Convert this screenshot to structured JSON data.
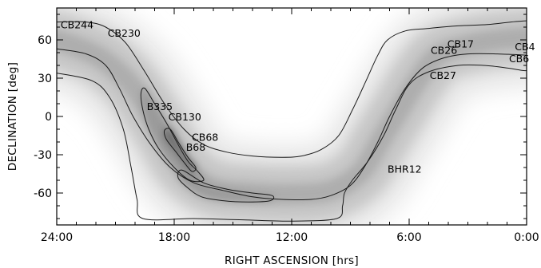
{
  "chart_data": {
    "type": "heatmap",
    "title": "",
    "xlabel": "RIGHT ASCENSION [hrs]",
    "ylabel": "DECLINATION [deg]",
    "xlim": [
      24,
      0
    ],
    "ylim": [
      -85,
      85
    ],
    "x_ticks": [
      {
        "value": 24,
        "label": "24:00"
      },
      {
        "value": 18,
        "label": "18:00"
      },
      {
        "value": 12,
        "label": "12:00"
      },
      {
        "value": 6,
        "label": "6:00"
      },
      {
        "value": 0,
        "label": "0:00"
      }
    ],
    "y_ticks": [
      {
        "value": 60,
        "label": "60"
      },
      {
        "value": 30,
        "label": "30"
      },
      {
        "value": 0,
        "label": "0"
      },
      {
        "value": -30,
        "label": "-30"
      },
      {
        "value": -60,
        "label": "-60"
      }
    ],
    "grid": false,
    "colormap": "greyscale",
    "objects": [
      {
        "name": "CB244",
        "ra": 23.8,
        "dec": 69
      },
      {
        "name": "CB230",
        "ra": 21.4,
        "dec": 62.5
      },
      {
        "name": "B335",
        "ra": 19.4,
        "dec": 5
      },
      {
        "name": "CB130",
        "ra": 18.3,
        "dec": -3
      },
      {
        "name": "CB68",
        "ra": 17.1,
        "dec": -19
      },
      {
        "name": "B68",
        "ra": 17.4,
        "dec": -27
      },
      {
        "name": "BHR12",
        "ra": 7.1,
        "dec": -44
      },
      {
        "name": "CB17",
        "ra": 4.05,
        "dec": 54
      },
      {
        "name": "CB26",
        "ra": 4.9,
        "dec": 49
      },
      {
        "name": "CB27",
        "ra": 4.95,
        "dec": 29.5
      },
      {
        "name": "CB4",
        "ra": 0.6,
        "dec": 52
      },
      {
        "name": "CB6",
        "ra": 0.9,
        "dec": 42.5
      }
    ],
    "band_center": [
      {
        "ra": 24,
        "dec": 60
      },
      {
        "ra": 22,
        "dec": 48
      },
      {
        "ra": 20.5,
        "dec": 30
      },
      {
        "ra": 19.5,
        "dec": 10
      },
      {
        "ra": 18.5,
        "dec": -15
      },
      {
        "ra": 17.5,
        "dec": -40
      },
      {
        "ra": 16,
        "dec": -56
      },
      {
        "ra": 14,
        "dec": -60
      },
      {
        "ra": 12,
        "dec": -61
      },
      {
        "ra": 10,
        "dec": -58
      },
      {
        "ra": 8.5,
        "dec": -44
      },
      {
        "ra": 7.5,
        "dec": -20
      },
      {
        "ra": 6.5,
        "dec": 5
      },
      {
        "ra": 5.5,
        "dec": 30
      },
      {
        "ra": 4.5,
        "dec": 48
      },
      {
        "ra": 3,
        "dec": 56
      },
      {
        "ra": 1.5,
        "dec": 60
      },
      {
        "ra": 0,
        "dec": 62
      }
    ],
    "contours": [
      {
        "level": "outer",
        "points": [
          {
            "ra": 24,
            "dec": 34
          },
          {
            "ra": 22.2,
            "dec": 28
          },
          {
            "ra": 21.3,
            "dec": 15
          },
          {
            "ra": 20.6,
            "dec": -10
          },
          {
            "ra": 20.2,
            "dec": -40
          },
          {
            "ra": 19.9,
            "dec": -65
          },
          {
            "ra": 19.6,
            "dec": -80
          },
          {
            "ra": 17,
            "dec": -80
          },
          {
            "ra": 14.5,
            "dec": -81
          },
          {
            "ra": 12,
            "dec": -82
          },
          {
            "ra": 9.7,
            "dec": -80
          },
          {
            "ra": 9.4,
            "dec": -70
          },
          {
            "ra": 9.3,
            "dec": -60
          },
          {
            "ra": 8.9,
            "dec": -50
          },
          {
            "ra": 8.1,
            "dec": -35
          },
          {
            "ra": 7.3,
            "dec": -15
          },
          {
            "ra": 6.7,
            "dec": 5
          },
          {
            "ra": 6.0,
            "dec": 25
          },
          {
            "ra": 5.0,
            "dec": 35
          },
          {
            "ra": 3.5,
            "dec": 40
          },
          {
            "ra": 2.2,
            "dec": 40
          },
          {
            "ra": 1.0,
            "dec": 38
          },
          {
            "ra": 0.2,
            "dec": 36
          },
          {
            "ra": 0,
            "dec": 36
          }
        ]
      },
      {
        "level": "middle-upper",
        "points": [
          {
            "ra": 24,
            "dec": 53
          },
          {
            "ra": 22.5,
            "dec": 49
          },
          {
            "ra": 21.5,
            "dec": 40
          },
          {
            "ra": 20.8,
            "dec": 22
          },
          {
            "ra": 20.1,
            "dec": 0
          },
          {
            "ra": 19.2,
            "dec": -22
          },
          {
            "ra": 18.2,
            "dec": -40
          },
          {
            "ra": 17,
            "dec": -52
          },
          {
            "ra": 15.5,
            "dec": -58
          },
          {
            "ra": 14,
            "dec": -63
          },
          {
            "ra": 12.5,
            "dec": -65
          },
          {
            "ra": 11,
            "dec": -65
          },
          {
            "ra": 10,
            "dec": -62
          },
          {
            "ra": 9.0,
            "dec": -54
          },
          {
            "ra": 8.3,
            "dec": -40
          },
          {
            "ra": 7.6,
            "dec": -20
          },
          {
            "ra": 7.0,
            "dec": 0
          },
          {
            "ra": 6.2,
            "dec": 22
          },
          {
            "ra": 5.3,
            "dec": 38
          },
          {
            "ra": 4.2,
            "dec": 46
          },
          {
            "ra": 3.0,
            "dec": 49
          },
          {
            "ra": 1.5,
            "dec": 49
          },
          {
            "ra": 0,
            "dec": 48
          }
        ]
      },
      {
        "level": "middle-lower",
        "points": [
          {
            "ra": 24,
            "dec": 74
          },
          {
            "ra": 22.5,
            "dec": 74
          },
          {
            "ra": 21.5,
            "dec": 70
          },
          {
            "ra": 20.5,
            "dec": 58
          },
          {
            "ra": 19.5,
            "dec": 35
          },
          {
            "ra": 18.5,
            "dec": 10
          },
          {
            "ra": 17.5,
            "dec": -10
          },
          {
            "ra": 16.5,
            "dec": -22
          },
          {
            "ra": 15.3,
            "dec": -28
          },
          {
            "ra": 14,
            "dec": -31
          },
          {
            "ra": 12.5,
            "dec": -32
          },
          {
            "ra": 11.5,
            "dec": -31
          },
          {
            "ra": 10.5,
            "dec": -26
          },
          {
            "ra": 9.6,
            "dec": -15
          },
          {
            "ra": 8.9,
            "dec": 5
          },
          {
            "ra": 8.2,
            "dec": 28
          },
          {
            "ra": 7.6,
            "dec": 48
          },
          {
            "ra": 7.1,
            "dec": 60
          },
          {
            "ra": 6.2,
            "dec": 67
          },
          {
            "ra": 5.0,
            "dec": 69
          },
          {
            "ra": 3.5,
            "dec": 71
          },
          {
            "ra": 2.0,
            "dec": 72
          },
          {
            "ra": 0.8,
            "dec": 74
          },
          {
            "ra": 0,
            "dec": 75
          }
        ]
      },
      {
        "level": "inner-lobe",
        "closed": true,
        "points": [
          {
            "ra": 19.5,
            "dec": 22
          },
          {
            "ra": 19.0,
            "dec": 10
          },
          {
            "ra": 18.4,
            "dec": -5
          },
          {
            "ra": 17.8,
            "dec": -22
          },
          {
            "ra": 17.3,
            "dec": -35
          },
          {
            "ra": 16.8,
            "dec": -43
          },
          {
            "ra": 16.5,
            "dec": -50
          },
          {
            "ra": 17.2,
            "dec": -50
          },
          {
            "ra": 18.0,
            "dec": -40
          },
          {
            "ra": 18.8,
            "dec": -25
          },
          {
            "ra": 19.3,
            "dec": -10
          },
          {
            "ra": 19.6,
            "dec": 5
          },
          {
            "ra": 19.7,
            "dec": 18
          }
        ]
      },
      {
        "level": "inner-tail",
        "closed": true,
        "points": [
          {
            "ra": 17.6,
            "dec": -42
          },
          {
            "ra": 16.5,
            "dec": -52
          },
          {
            "ra": 15.3,
            "dec": -57
          },
          {
            "ra": 14.0,
            "dec": -60
          },
          {
            "ra": 13.0,
            "dec": -62
          },
          {
            "ra": 13.1,
            "dec": -66
          },
          {
            "ra": 14.2,
            "dec": -67
          },
          {
            "ra": 15.5,
            "dec": -66
          },
          {
            "ra": 16.6,
            "dec": -63
          },
          {
            "ra": 17.3,
            "dec": -56
          },
          {
            "ra": 17.8,
            "dec": -48
          }
        ]
      },
      {
        "level": "innermost",
        "closed": true,
        "points": [
          {
            "ra": 18.2,
            "dec": -10
          },
          {
            "ra": 17.8,
            "dec": -20
          },
          {
            "ra": 17.3,
            "dec": -32
          },
          {
            "ra": 16.9,
            "dec": -40
          },
          {
            "ra": 17.1,
            "dec": -43
          },
          {
            "ra": 17.5,
            "dec": -36
          },
          {
            "ra": 17.9,
            "dec": -28
          },
          {
            "ra": 18.4,
            "dec": -18
          },
          {
            "ra": 18.5,
            "dec": -11
          }
        ]
      }
    ]
  }
}
